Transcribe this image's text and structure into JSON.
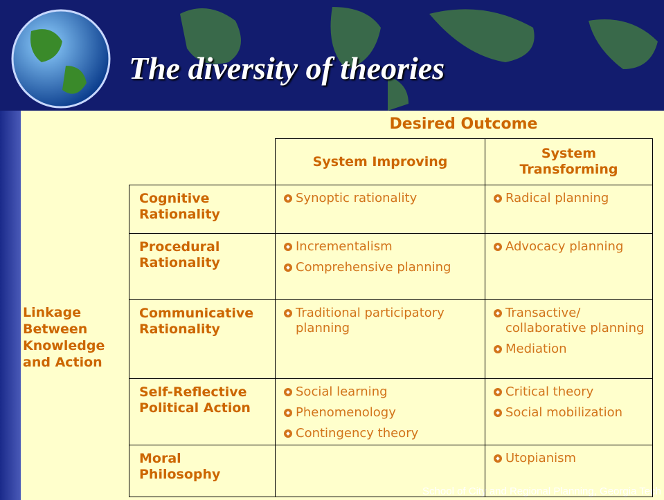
{
  "header": {
    "title": "The diversity of theories"
  },
  "table": {
    "super_header": "Desired Outcome",
    "row_group_label": "Linkage Between Knowledge and Action",
    "columns": [
      "System Improving",
      "System Transforming"
    ],
    "rows": [
      {
        "label": "Cognitive Rationality",
        "cells": [
          [
            "Synoptic rationality"
          ],
          [
            "Radical planning"
          ]
        ]
      },
      {
        "label": "Procedural Rationality",
        "cells": [
          [
            "Incrementalism",
            "Comprehensive planning"
          ],
          [
            "Advocacy planning"
          ]
        ]
      },
      {
        "label": "Communicative Rationality",
        "cells": [
          [
            "Traditional participatory planning"
          ],
          [
            "Transactive/ collaborative planning",
            "Mediation"
          ]
        ]
      },
      {
        "label": "Self-Reflective Political Action",
        "cells": [
          [
            "Social learning",
            "Phenomenology",
            "Contingency theory"
          ],
          [
            "Critical theory",
            "Social mobilization"
          ]
        ]
      },
      {
        "label": "Moral Philosophy",
        "cells": [
          [],
          [
            "Utopianism"
          ]
        ]
      }
    ]
  },
  "footer": "School of City and Regional Planning, Georgia Tech"
}
